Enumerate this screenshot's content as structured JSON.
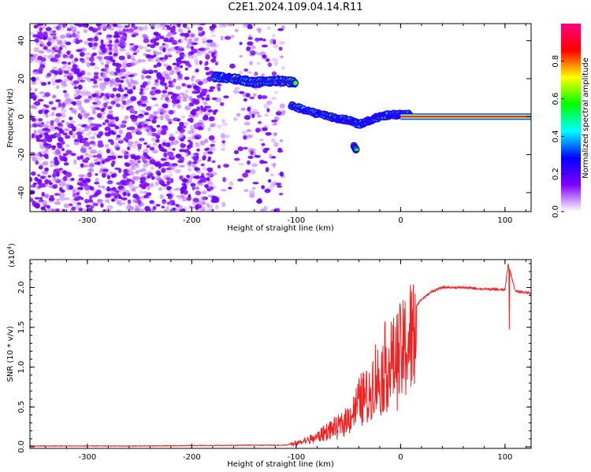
{
  "title": "C2E1.2024.109.04.14.R11",
  "chart_data": [
    {
      "type": "heatmap",
      "xlabel": "Height of straight line (km)",
      "ylabel": "Frequency (Hz)",
      "xlim": [
        -355,
        125
      ],
      "ylim": [
        -50,
        49
      ],
      "xticks": [
        -300,
        -200,
        -100,
        0,
        100
      ],
      "xtick_labels": [
        "-300",
        "-200",
        "-100",
        "0",
        "100"
      ],
      "yticks": [
        -40,
        -20,
        0,
        20,
        40
      ],
      "ytick_labels": [
        "-40",
        "-20",
        "0",
        "20",
        "40"
      ],
      "colorbar": {
        "label": "Normalized spectral amplitude",
        "range": [
          0.0,
          1.0
        ],
        "ticks": [
          0.0,
          0.2,
          0.4,
          0.6,
          0.8
        ],
        "tick_labels": [
          "0.0",
          "0.2",
          "0.4",
          "0.6",
          "0.8"
        ],
        "colors": [
          "#ffffff",
          "#7f00ff",
          "#0000ff",
          "#00ffff",
          "#00ff00",
          "#ffff00",
          "#ff0000",
          "#ff007f"
        ]
      },
      "features": {
        "noise_region_x": [
          -355,
          -112
        ],
        "strong_track_1": {
          "x": [
            -178,
            -160,
            -140,
            -120,
            -100
          ],
          "y": [
            21,
            20,
            18,
            19,
            18
          ]
        },
        "strong_track_2": {
          "x": [
            -105,
            -90,
            -75,
            -60,
            -48,
            -40,
            -30,
            -20,
            -10,
            0,
            10
          ],
          "y": [
            6,
            3,
            1,
            -1,
            -2,
            -4,
            -2,
            0,
            1,
            1,
            1
          ]
        },
        "spur": {
          "x": [
            -45,
            -42
          ],
          "y": [
            -15,
            -18
          ]
        },
        "carrier_line": {
          "x": [
            0,
            125
          ],
          "y": 0
        }
      }
    },
    {
      "type": "line",
      "xlabel": "Height of straight line (km)",
      "ylabel": "SNR (10 * v/v)",
      "yscale_label": "(x10",
      "yscale_exp": "4",
      "yscale_close": ")",
      "xlim": [
        -355,
        125
      ],
      "ylim": [
        -0.02,
        2.35
      ],
      "xticks": [
        -300,
        -200,
        -100,
        0,
        100
      ],
      "xtick_labels": [
        "-300",
        "-200",
        "-100",
        "0",
        "100"
      ],
      "yticks": [
        0.0,
        0.5,
        1.0,
        1.5,
        2.0
      ],
      "ytick_labels": [
        "0.0",
        "0.5",
        "1.0",
        "1.5",
        "2.0"
      ],
      "line_color": "#ee2222",
      "series": [
        {
          "x": [
            -355,
            -300,
            -250,
            -200,
            -150,
            -110,
            -100,
            -90,
            -80,
            -70,
            -60,
            -50,
            -45,
            -40,
            -35,
            -30,
            -25,
            -20,
            -15,
            -10,
            -5,
            0,
            10,
            20,
            30,
            40,
            60,
            80,
            100,
            103,
            110,
            125
          ],
          "y": [
            0.01,
            0.01,
            0.01,
            0.015,
            0.02,
            0.02,
            0.05,
            0.1,
            0.15,
            0.25,
            0.3,
            0.45,
            0.55,
            0.7,
            0.8,
            0.75,
            1.1,
            1.0,
            1.25,
            1.3,
            1.35,
            1.45,
            1.7,
            1.85,
            1.95,
            2.0,
            2.0,
            1.98,
            1.97,
            2.3,
            1.95,
            1.93
          ]
        }
      ]
    }
  ]
}
